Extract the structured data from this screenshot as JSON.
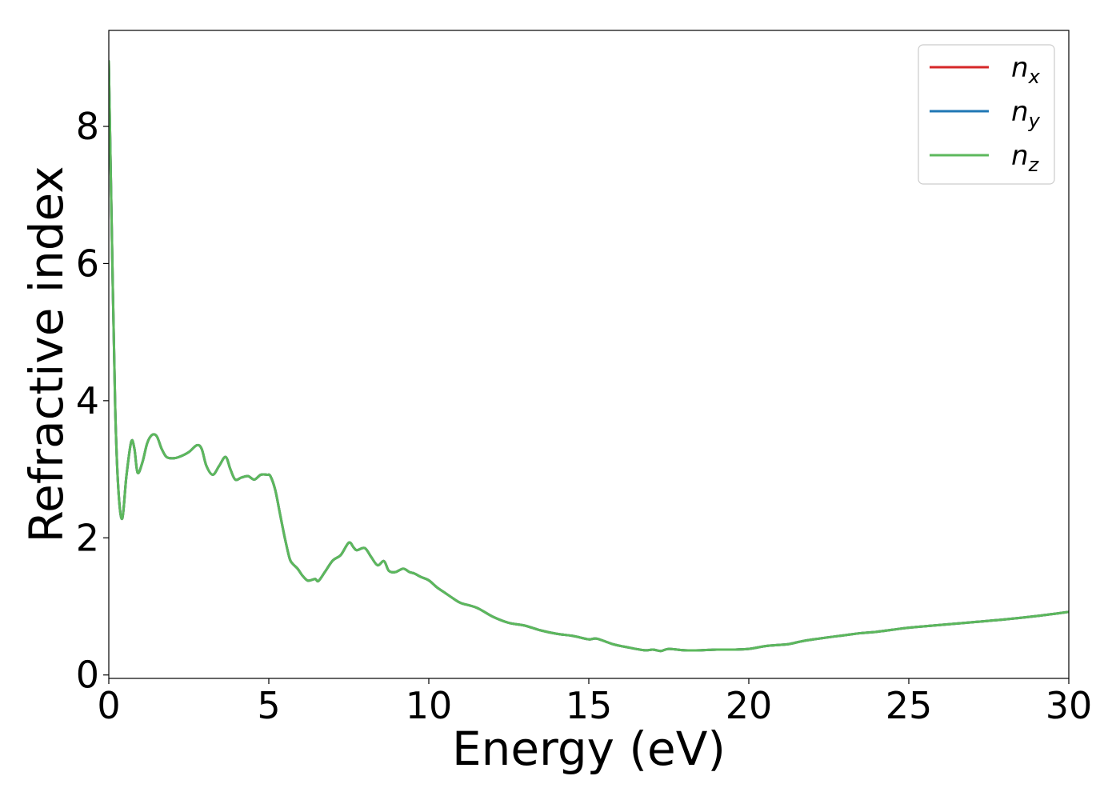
{
  "chart_data": {
    "type": "line",
    "xlabel": "Energy (eV)",
    "ylabel": "Refractive index",
    "xlim": [
      0,
      30
    ],
    "ylim": [
      -0.05,
      9.4
    ],
    "xticks": [
      0,
      5,
      10,
      15,
      20,
      25,
      30
    ],
    "xtick_labels": [
      "0",
      "5",
      "10",
      "15",
      "20",
      "25",
      "30"
    ],
    "yticks": [
      0,
      2,
      4,
      6,
      8
    ],
    "ytick_labels": [
      "0",
      "2",
      "4",
      "6",
      "8"
    ],
    "grid": false,
    "legend_position": "top-right",
    "legend": [
      {
        "base": "n",
        "sub": "x"
      },
      {
        "base": "n",
        "sub": "y"
      },
      {
        "base": "n",
        "sub": "z"
      }
    ],
    "x": [
      0,
      0.1,
      0.2,
      0.3,
      0.42,
      0.55,
      0.7,
      0.8,
      0.9,
      1.05,
      1.2,
      1.35,
      1.5,
      1.65,
      1.8,
      2.0,
      2.2,
      2.5,
      2.75,
      2.9,
      3.05,
      3.25,
      3.45,
      3.65,
      3.8,
      3.95,
      4.15,
      4.35,
      4.55,
      4.75,
      4.95,
      5.05,
      5.2,
      5.35,
      5.5,
      5.65,
      5.75,
      5.9,
      6.05,
      6.2,
      6.3,
      6.45,
      6.55,
      6.75,
      7.0,
      7.25,
      7.5,
      7.65,
      7.75,
      8.0,
      8.2,
      8.4,
      8.6,
      8.75,
      8.95,
      9.2,
      9.4,
      9.55,
      9.75,
      10.0,
      10.25,
      10.5,
      10.75,
      11.0,
      11.5,
      12.0,
      12.5,
      13.0,
      13.5,
      14.0,
      14.5,
      15.0,
      15.25,
      15.75,
      16.25,
      16.75,
      17.0,
      17.25,
      17.5,
      18.0,
      18.5,
      19.0,
      19.5,
      20.0,
      20.5,
      21.0,
      21.25,
      21.75,
      22.5,
      23.0,
      23.5,
      24.0,
      24.5,
      25.0,
      26.0,
      27.0,
      28.0,
      29.0,
      30.0
    ],
    "series": [
      {
        "name": "n_x",
        "color": "#d62728",
        "values": [
          8.95,
          6.3,
          3.9,
          2.7,
          2.28,
          2.9,
          3.4,
          3.3,
          2.95,
          3.1,
          3.38,
          3.5,
          3.48,
          3.3,
          3.18,
          3.16,
          3.18,
          3.25,
          3.35,
          3.3,
          3.05,
          2.92,
          3.05,
          3.18,
          3.0,
          2.85,
          2.88,
          2.9,
          2.85,
          2.92,
          2.92,
          2.9,
          2.7,
          2.35,
          2.0,
          1.7,
          1.62,
          1.55,
          1.45,
          1.38,
          1.38,
          1.4,
          1.37,
          1.5,
          1.67,
          1.75,
          1.93,
          1.86,
          1.82,
          1.85,
          1.72,
          1.6,
          1.66,
          1.52,
          1.5,
          1.55,
          1.5,
          1.48,
          1.43,
          1.38,
          1.28,
          1.2,
          1.12,
          1.05,
          0.98,
          0.85,
          0.76,
          0.72,
          0.65,
          0.6,
          0.57,
          0.52,
          0.53,
          0.45,
          0.4,
          0.36,
          0.37,
          0.35,
          0.38,
          0.36,
          0.36,
          0.37,
          0.37,
          0.38,
          0.42,
          0.44,
          0.45,
          0.5,
          0.55,
          0.58,
          0.61,
          0.63,
          0.66,
          0.69,
          0.73,
          0.77,
          0.81,
          0.86,
          0.92
        ]
      },
      {
        "name": "n_y",
        "color": "#1f77b4",
        "values": [
          8.95,
          6.3,
          3.9,
          2.7,
          2.28,
          2.9,
          3.4,
          3.3,
          2.95,
          3.1,
          3.38,
          3.5,
          3.48,
          3.3,
          3.18,
          3.16,
          3.18,
          3.25,
          3.35,
          3.3,
          3.05,
          2.92,
          3.05,
          3.18,
          3.0,
          2.85,
          2.88,
          2.9,
          2.85,
          2.92,
          2.92,
          2.9,
          2.7,
          2.35,
          2.0,
          1.7,
          1.62,
          1.55,
          1.45,
          1.38,
          1.38,
          1.4,
          1.37,
          1.5,
          1.67,
          1.75,
          1.93,
          1.86,
          1.82,
          1.85,
          1.72,
          1.6,
          1.66,
          1.52,
          1.5,
          1.55,
          1.5,
          1.48,
          1.43,
          1.38,
          1.28,
          1.2,
          1.12,
          1.05,
          0.98,
          0.85,
          0.76,
          0.72,
          0.65,
          0.6,
          0.57,
          0.52,
          0.53,
          0.45,
          0.4,
          0.36,
          0.37,
          0.35,
          0.38,
          0.36,
          0.36,
          0.37,
          0.37,
          0.38,
          0.42,
          0.44,
          0.45,
          0.5,
          0.55,
          0.58,
          0.61,
          0.63,
          0.66,
          0.69,
          0.73,
          0.77,
          0.81,
          0.86,
          0.92
        ]
      },
      {
        "name": "n_z",
        "color": "#5cb85c",
        "values": [
          8.95,
          6.3,
          3.9,
          2.7,
          2.28,
          2.9,
          3.4,
          3.3,
          2.95,
          3.1,
          3.38,
          3.5,
          3.48,
          3.3,
          3.18,
          3.16,
          3.18,
          3.25,
          3.35,
          3.3,
          3.05,
          2.92,
          3.05,
          3.18,
          3.0,
          2.85,
          2.88,
          2.9,
          2.85,
          2.92,
          2.92,
          2.9,
          2.7,
          2.35,
          2.0,
          1.7,
          1.62,
          1.55,
          1.45,
          1.38,
          1.38,
          1.4,
          1.37,
          1.5,
          1.67,
          1.75,
          1.93,
          1.86,
          1.82,
          1.85,
          1.72,
          1.6,
          1.66,
          1.52,
          1.5,
          1.55,
          1.5,
          1.48,
          1.43,
          1.38,
          1.28,
          1.2,
          1.12,
          1.05,
          0.98,
          0.85,
          0.76,
          0.72,
          0.65,
          0.6,
          0.57,
          0.52,
          0.53,
          0.45,
          0.4,
          0.36,
          0.37,
          0.35,
          0.38,
          0.36,
          0.36,
          0.37,
          0.37,
          0.38,
          0.42,
          0.44,
          0.45,
          0.5,
          0.55,
          0.58,
          0.61,
          0.63,
          0.66,
          0.69,
          0.73,
          0.77,
          0.81,
          0.86,
          0.92
        ]
      }
    ]
  }
}
